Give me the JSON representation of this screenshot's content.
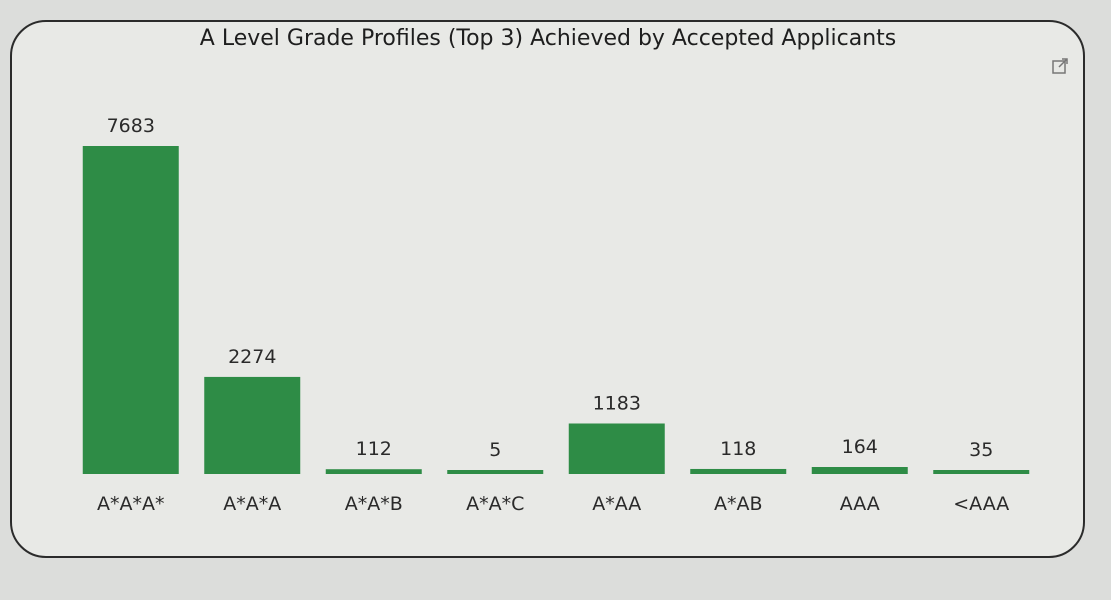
{
  "visual": {
    "focus_icon": "focus-mode-icon"
  },
  "chart_data": {
    "type": "bar",
    "title": "A Level Grade Profiles (Top 3) Achieved by Accepted Applicants",
    "categories": [
      "A*A*A*",
      "A*A*A",
      "A*A*B",
      "A*A*C",
      "A*AA",
      "A*AB",
      "AAA",
      "<AAA"
    ],
    "values": [
      7683,
      2274,
      112,
      5,
      1183,
      118,
      164,
      35
    ],
    "xlabel": "",
    "ylabel": "",
    "bar_color": "#2e8c46",
    "grid": false,
    "data_labels": true
  }
}
